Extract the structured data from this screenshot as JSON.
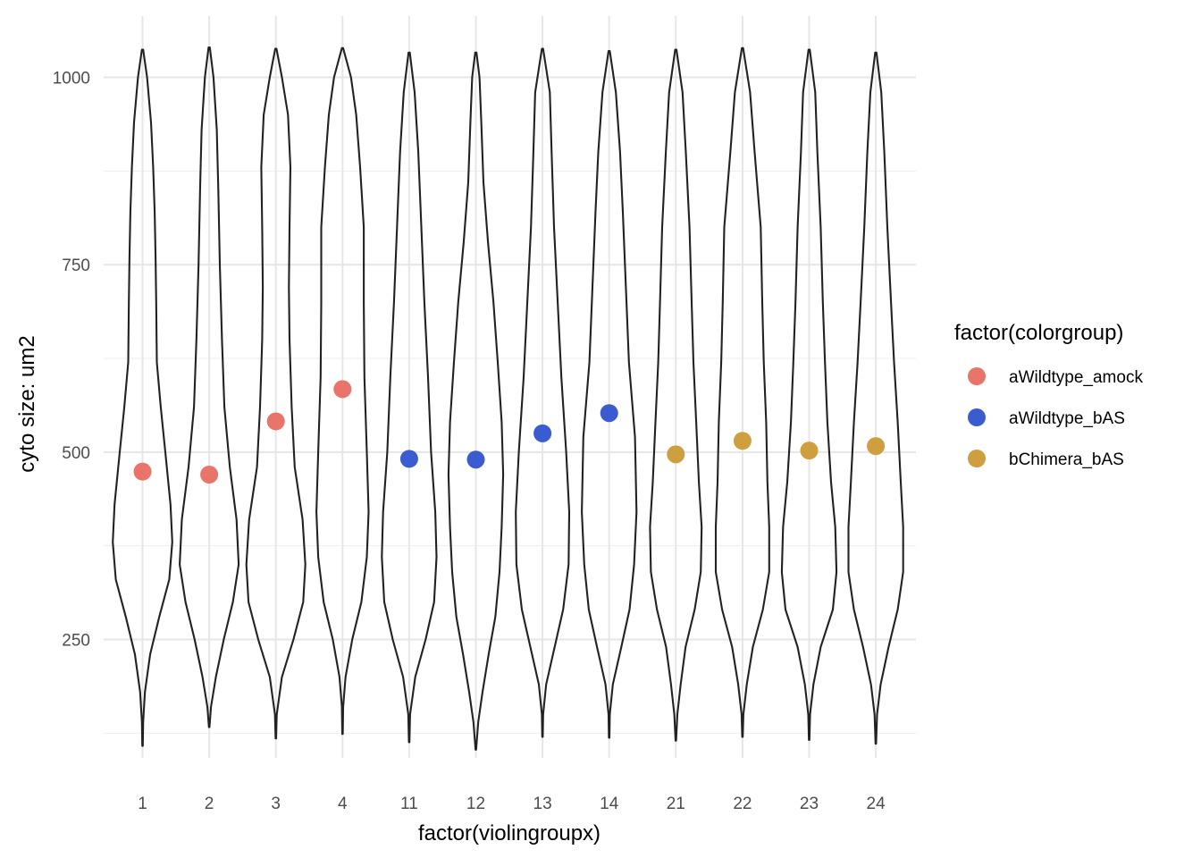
{
  "chart_data": {
    "type": "violin",
    "xlabel": "factor(violingroupx)",
    "ylabel": "cyto size: um2",
    "ylim": [
      60,
      1085
    ],
    "yticks": [
      250,
      500,
      750,
      1000
    ],
    "grid": true,
    "legend": {
      "title": "factor(colorgroup)",
      "position": "right",
      "entries": [
        {
          "label": "aWildtype_amock",
          "color": "#E8746A"
        },
        {
          "label": "aWildtype_bAS",
          "color": "#3B5BD0"
        },
        {
          "label": "bChimera_bAS",
          "color": "#CF9E3E"
        }
      ]
    },
    "categories": [
      "1",
      "2",
      "3",
      "4",
      "11",
      "12",
      "13",
      "14",
      "21",
      "22",
      "23",
      "24"
    ],
    "points": [
      {
        "x": "1",
        "y": 474,
        "group": "aWildtype_amock"
      },
      {
        "x": "2",
        "y": 470,
        "group": "aWildtype_amock"
      },
      {
        "x": "3",
        "y": 541,
        "group": "aWildtype_amock"
      },
      {
        "x": "4",
        "y": 584,
        "group": "aWildtype_amock"
      },
      {
        "x": "11",
        "y": 491,
        "group": "aWildtype_bAS"
      },
      {
        "x": "12",
        "y": 490,
        "group": "aWildtype_bAS"
      },
      {
        "x": "13",
        "y": 525,
        "group": "aWildtype_bAS"
      },
      {
        "x": "14",
        "y": 552,
        "group": "aWildtype_bAS"
      },
      {
        "x": "21",
        "y": 497,
        "group": "bChimera_bAS"
      },
      {
        "x": "22",
        "y": 515,
        "group": "bChimera_bAS"
      },
      {
        "x": "23",
        "y": 502,
        "group": "bChimera_bAS"
      },
      {
        "x": "24",
        "y": 508,
        "group": "bChimera_bAS"
      }
    ],
    "violins": [
      {
        "x": "1",
        "min": 108,
        "max": 1037,
        "profile": [
          [
            108,
            0.01
          ],
          [
            140,
            0.02
          ],
          [
            180,
            0.08
          ],
          [
            230,
            0.25
          ],
          [
            280,
            0.55
          ],
          [
            330,
            0.88
          ],
          [
            380,
            0.98
          ],
          [
            430,
            0.92
          ],
          [
            500,
            0.75
          ],
          [
            560,
            0.6
          ],
          [
            620,
            0.47
          ],
          [
            700,
            0.45
          ],
          [
            760,
            0.43
          ],
          [
            820,
            0.4
          ],
          [
            880,
            0.35
          ],
          [
            940,
            0.28
          ],
          [
            1000,
            0.15
          ],
          [
            1037,
            0.02
          ]
        ]
      },
      {
        "x": "2",
        "min": 133,
        "max": 1040,
        "profile": [
          [
            133,
            0.01
          ],
          [
            160,
            0.06
          ],
          [
            200,
            0.22
          ],
          [
            250,
            0.48
          ],
          [
            300,
            0.78
          ],
          [
            350,
            0.97
          ],
          [
            410,
            0.9
          ],
          [
            480,
            0.68
          ],
          [
            560,
            0.5
          ],
          [
            650,
            0.42
          ],
          [
            750,
            0.35
          ],
          [
            850,
            0.3
          ],
          [
            930,
            0.25
          ],
          [
            1000,
            0.14
          ],
          [
            1040,
            0.02
          ]
        ]
      },
      {
        "x": "3",
        "min": 118,
        "max": 1038,
        "profile": [
          [
            118,
            0.01
          ],
          [
            150,
            0.03
          ],
          [
            200,
            0.2
          ],
          [
            250,
            0.58
          ],
          [
            300,
            0.9
          ],
          [
            350,
            0.97
          ],
          [
            410,
            0.88
          ],
          [
            480,
            0.62
          ],
          [
            560,
            0.52
          ],
          [
            650,
            0.45
          ],
          [
            720,
            0.43
          ],
          [
            800,
            0.45
          ],
          [
            880,
            0.48
          ],
          [
            950,
            0.4
          ],
          [
            1000,
            0.2
          ],
          [
            1038,
            0.02
          ]
        ]
      },
      {
        "x": "4",
        "min": 124,
        "max": 1039,
        "profile": [
          [
            124,
            0.01
          ],
          [
            160,
            0.02
          ],
          [
            200,
            0.1
          ],
          [
            250,
            0.32
          ],
          [
            300,
            0.62
          ],
          [
            360,
            0.8
          ],
          [
            420,
            0.86
          ],
          [
            500,
            0.8
          ],
          [
            600,
            0.72
          ],
          [
            700,
            0.7
          ],
          [
            800,
            0.7
          ],
          [
            880,
            0.58
          ],
          [
            950,
            0.45
          ],
          [
            1000,
            0.28
          ],
          [
            1039,
            0.02
          ]
        ]
      },
      {
        "x": "11",
        "min": 113,
        "max": 1033,
        "profile": [
          [
            113,
            0.01
          ],
          [
            150,
            0.03
          ],
          [
            200,
            0.2
          ],
          [
            250,
            0.54
          ],
          [
            300,
            0.82
          ],
          [
            360,
            0.9
          ],
          [
            420,
            0.86
          ],
          [
            500,
            0.72
          ],
          [
            600,
            0.62
          ],
          [
            700,
            0.5
          ],
          [
            800,
            0.4
          ],
          [
            900,
            0.3
          ],
          [
            980,
            0.18
          ],
          [
            1033,
            0.02
          ]
        ]
      },
      {
        "x": "12",
        "min": 103,
        "max": 1033,
        "profile": [
          [
            103,
            0.01
          ],
          [
            140,
            0.08
          ],
          [
            180,
            0.22
          ],
          [
            230,
            0.42
          ],
          [
            280,
            0.64
          ],
          [
            340,
            0.78
          ],
          [
            400,
            0.85
          ],
          [
            470,
            0.9
          ],
          [
            540,
            0.85
          ],
          [
            620,
            0.72
          ],
          [
            700,
            0.58
          ],
          [
            780,
            0.4
          ],
          [
            860,
            0.25
          ],
          [
            940,
            0.18
          ],
          [
            1000,
            0.12
          ],
          [
            1033,
            0.02
          ]
        ]
      },
      {
        "x": "13",
        "min": 120,
        "max": 1038,
        "profile": [
          [
            120,
            0.01
          ],
          [
            150,
            0.02
          ],
          [
            190,
            0.12
          ],
          [
            240,
            0.4
          ],
          [
            290,
            0.68
          ],
          [
            350,
            0.86
          ],
          [
            420,
            0.88
          ],
          [
            500,
            0.78
          ],
          [
            600,
            0.62
          ],
          [
            700,
            0.5
          ],
          [
            800,
            0.38
          ],
          [
            900,
            0.3
          ],
          [
            980,
            0.24
          ],
          [
            1038,
            0.02
          ]
        ]
      },
      {
        "x": "14",
        "min": 119,
        "max": 1035,
        "profile": [
          [
            119,
            0.01
          ],
          [
            150,
            0.02
          ],
          [
            190,
            0.12
          ],
          [
            240,
            0.4
          ],
          [
            290,
            0.67
          ],
          [
            350,
            0.82
          ],
          [
            420,
            0.9
          ],
          [
            520,
            0.85
          ],
          [
            620,
            0.65
          ],
          [
            720,
            0.55
          ],
          [
            820,
            0.45
          ],
          [
            900,
            0.36
          ],
          [
            980,
            0.22
          ],
          [
            1035,
            0.02
          ]
        ]
      },
      {
        "x": "21",
        "min": 115,
        "max": 1037,
        "profile": [
          [
            115,
            0.01
          ],
          [
            150,
            0.05
          ],
          [
            190,
            0.16
          ],
          [
            240,
            0.32
          ],
          [
            290,
            0.62
          ],
          [
            340,
            0.82
          ],
          [
            400,
            0.85
          ],
          [
            460,
            0.76
          ],
          [
            540,
            0.67
          ],
          [
            620,
            0.58
          ],
          [
            700,
            0.52
          ],
          [
            800,
            0.45
          ],
          [
            900,
            0.33
          ],
          [
            980,
            0.22
          ],
          [
            1037,
            0.02
          ]
        ]
      },
      {
        "x": "22",
        "min": 120,
        "max": 1039,
        "profile": [
          [
            120,
            0.01
          ],
          [
            150,
            0.03
          ],
          [
            190,
            0.14
          ],
          [
            240,
            0.34
          ],
          [
            290,
            0.67
          ],
          [
            340,
            0.88
          ],
          [
            400,
            0.88
          ],
          [
            460,
            0.82
          ],
          [
            540,
            0.78
          ],
          [
            620,
            0.7
          ],
          [
            700,
            0.65
          ],
          [
            800,
            0.6
          ],
          [
            900,
            0.4
          ],
          [
            980,
            0.25
          ],
          [
            1039,
            0.02
          ]
        ]
      },
      {
        "x": "23",
        "min": 116,
        "max": 1037,
        "profile": [
          [
            116,
            0.01
          ],
          [
            150,
            0.03
          ],
          [
            190,
            0.14
          ],
          [
            240,
            0.38
          ],
          [
            290,
            0.78
          ],
          [
            340,
            0.9
          ],
          [
            400,
            0.86
          ],
          [
            460,
            0.72
          ],
          [
            540,
            0.6
          ],
          [
            620,
            0.52
          ],
          [
            700,
            0.45
          ],
          [
            800,
            0.38
          ],
          [
            900,
            0.27
          ],
          [
            980,
            0.2
          ],
          [
            1037,
            0.02
          ]
        ]
      },
      {
        "x": "24",
        "min": 111,
        "max": 1033,
        "profile": [
          [
            111,
            0.01
          ],
          [
            150,
            0.04
          ],
          [
            190,
            0.16
          ],
          [
            240,
            0.42
          ],
          [
            290,
            0.72
          ],
          [
            340,
            0.9
          ],
          [
            400,
            0.9
          ],
          [
            460,
            0.82
          ],
          [
            540,
            0.72
          ],
          [
            620,
            0.6
          ],
          [
            700,
            0.5
          ],
          [
            800,
            0.38
          ],
          [
            900,
            0.28
          ],
          [
            980,
            0.18
          ],
          [
            1033,
            0.02
          ]
        ]
      }
    ]
  }
}
